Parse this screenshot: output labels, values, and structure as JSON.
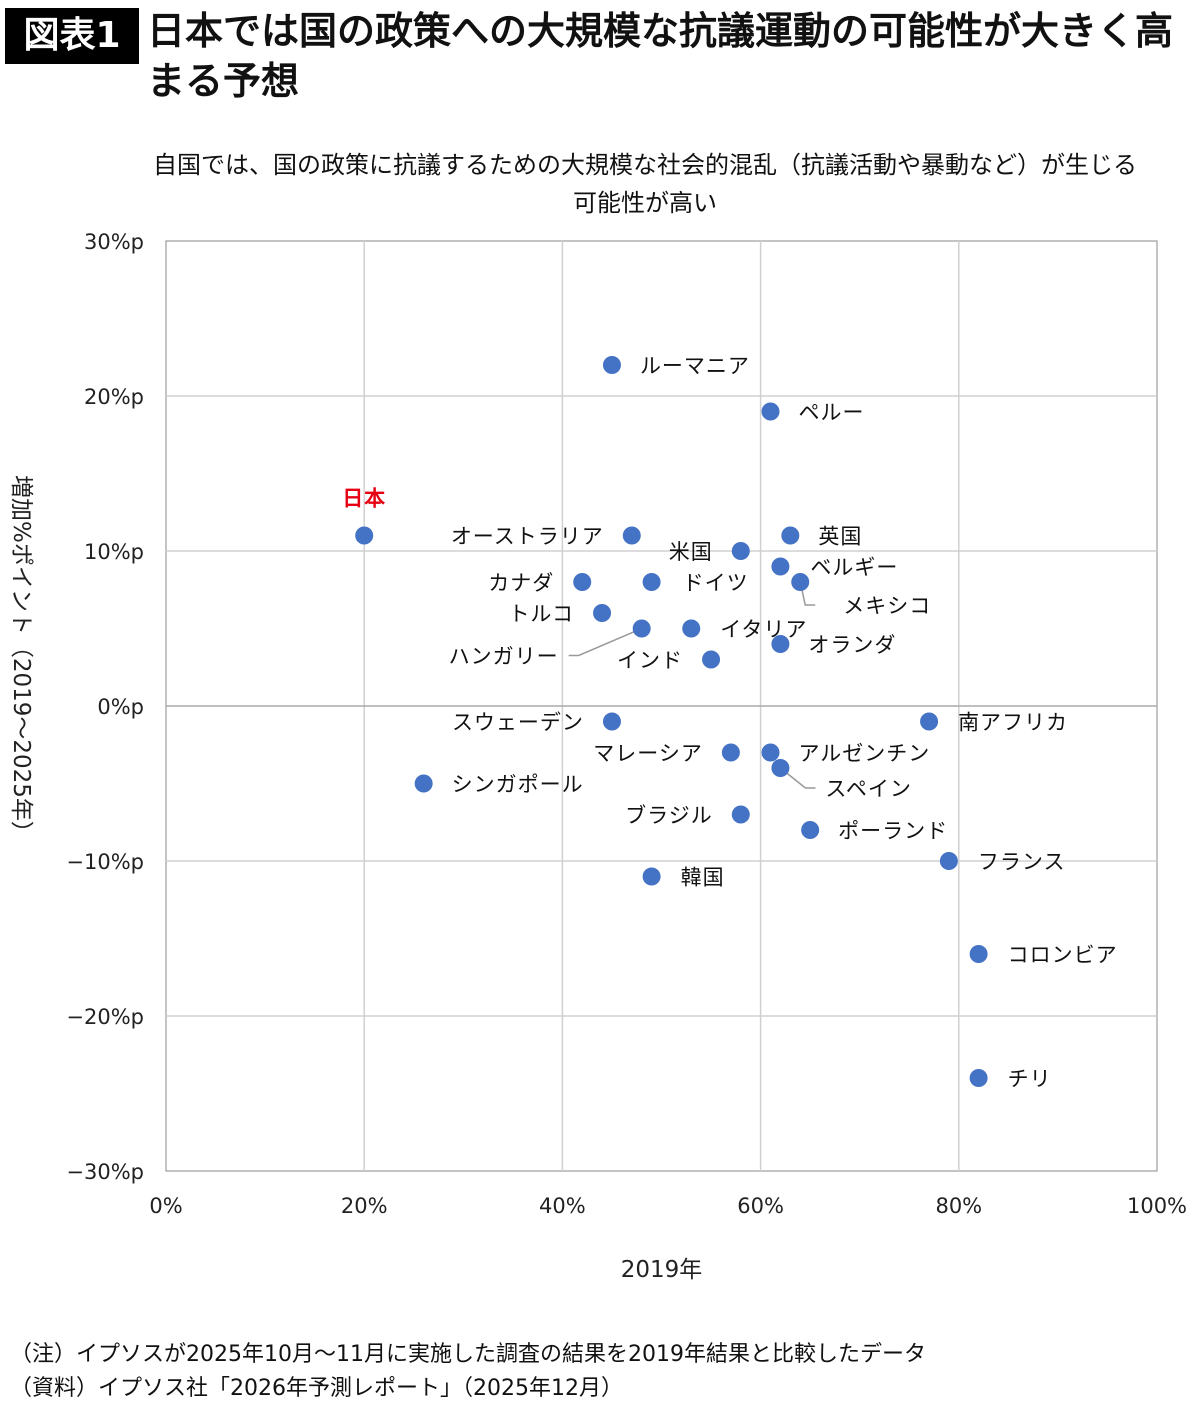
{
  "header": {
    "badge": "図表1",
    "title": "日本では国の政策への大規模な抗議運動の可能性が大きく高まる予想"
  },
  "chart_data": {
    "type": "scatter",
    "title": "自国では、国の政策に抗議するための大規模な社会的混乱（抗議活動や暴動など）が生じる可能性が高い",
    "xlabel": "2019年",
    "ylabel": "増加%ポイント（2019～2025年）",
    "xlim": [
      0,
      100
    ],
    "ylim": [
      -30,
      30
    ],
    "x_ticks": [
      "0%",
      "20%",
      "40%",
      "60%",
      "80%",
      "100%"
    ],
    "x_tick_values": [
      0,
      20,
      40,
      60,
      80,
      100
    ],
    "y_ticks": [
      "30%p",
      "20%p",
      "10%p",
      "0%p",
      "−10%p",
      "−20%p",
      "−30%p"
    ],
    "y_tick_values": [
      30,
      20,
      10,
      0,
      -10,
      -20,
      -30
    ],
    "grid": true,
    "marker_color": "#4472C4",
    "highlight_color": "#E60012",
    "points": [
      {
        "label": "ルーマニア",
        "x": 45,
        "y": 22
      },
      {
        "label": "ペルー",
        "x": 61,
        "y": 19
      },
      {
        "label": "日本",
        "x": 20,
        "y": 11,
        "highlight": true
      },
      {
        "label": "オーストラリア",
        "x": 47,
        "y": 11
      },
      {
        "label": "米国",
        "x": 58,
        "y": 10
      },
      {
        "label": "英国",
        "x": 63,
        "y": 11
      },
      {
        "label": "ベルギー",
        "x": 62,
        "y": 9
      },
      {
        "label": "メキシコ",
        "x": 64,
        "y": 8
      },
      {
        "label": "カナダ",
        "x": 42,
        "y": 8
      },
      {
        "label": "ドイツ",
        "x": 49,
        "y": 8
      },
      {
        "label": "トルコ",
        "x": 44,
        "y": 6
      },
      {
        "label": "ハンガリー",
        "x": 48,
        "y": 5
      },
      {
        "label": "イタリア",
        "x": 53,
        "y": 5
      },
      {
        "label": "オランダ",
        "x": 62,
        "y": 4
      },
      {
        "label": "インド",
        "x": 55,
        "y": 3
      },
      {
        "label": "スウェーデン",
        "x": 45,
        "y": -1
      },
      {
        "label": "南アフリカ",
        "x": 77,
        "y": -1
      },
      {
        "label": "マレーシア",
        "x": 57,
        "y": -3
      },
      {
        "label": "アルゼンチン",
        "x": 61,
        "y": -3
      },
      {
        "label": "スペイン",
        "x": 62,
        "y": -4
      },
      {
        "label": "シンガポール",
        "x": 26,
        "y": -5
      },
      {
        "label": "ブラジル",
        "x": 58,
        "y": -7
      },
      {
        "label": "ポーランド",
        "x": 65,
        "y": -8
      },
      {
        "label": "フランス",
        "x": 79,
        "y": -10
      },
      {
        "label": "韓国",
        "x": 49,
        "y": -11
      },
      {
        "label": "コロンビア",
        "x": 82,
        "y": -16
      },
      {
        "label": "チリ",
        "x": 82,
        "y": -24
      }
    ]
  },
  "footer": {
    "note": "（注）イプソスが2025年10月～11月に実施した調査の結果を2019年結果と比較したデータ",
    "source": "（資料）イプソス社「2026年予測レポート」（2025年12月）"
  }
}
